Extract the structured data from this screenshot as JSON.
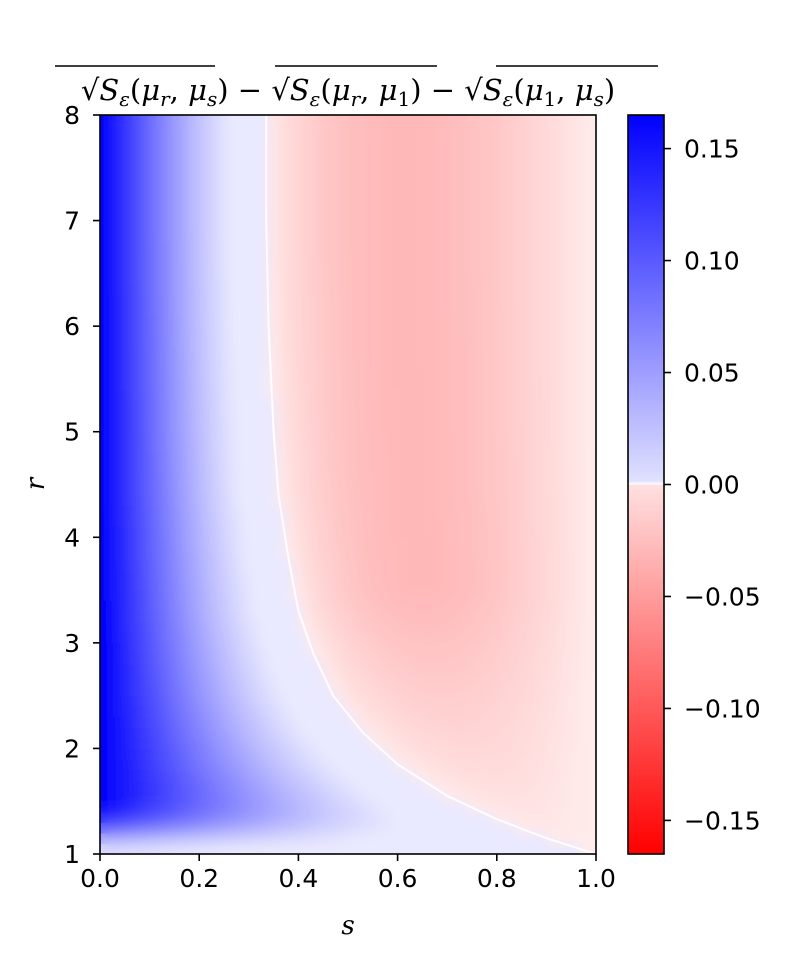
{
  "chart_data": {
    "type": "heatmap",
    "title": {
      "term1": {
        "func": "S",
        "eps": "ε",
        "args": [
          "μ",
          "r",
          "μ",
          "s"
        ]
      },
      "minus1": "−",
      "term2": {
        "func": "S",
        "eps": "ε",
        "args": [
          "μ",
          "r",
          "μ",
          "1"
        ]
      },
      "minus2": "−",
      "term3": {
        "func": "S",
        "eps": "ε",
        "args": [
          "μ",
          "1",
          "μ",
          "s"
        ]
      }
    },
    "xlabel": "s",
    "ylabel": "r",
    "xlim": [
      0.0,
      1.0
    ],
    "ylim": [
      1,
      8
    ],
    "x_ticks": [
      0.0,
      0.2,
      0.4,
      0.6,
      0.8,
      1.0
    ],
    "x_tick_labels": [
      "0.0",
      "0.2",
      "0.4",
      "0.6",
      "0.8",
      "1.0"
    ],
    "y_ticks": [
      1,
      2,
      3,
      4,
      5,
      6,
      7,
      8
    ],
    "y_tick_labels": [
      "1",
      "2",
      "3",
      "4",
      "5",
      "6",
      "7",
      "8"
    ],
    "colormap": "bwr_r",
    "colorbar": {
      "vmin": -0.165,
      "vmax": 0.165,
      "ticks": [
        0.15,
        0.1,
        0.05,
        0.0,
        -0.05,
        -0.1,
        -0.15
      ],
      "tick_labels": [
        "0.15",
        "0.10",
        "0.05",
        "0.00",
        "−0.05",
        "−0.10",
        "−0.15"
      ],
      "color_max": "#0000ff",
      "color_mid": "#ffffff",
      "color_min": "#ff0000"
    },
    "zero_contour": {
      "s": [
        0.335,
        0.335,
        0.34,
        0.35,
        0.36,
        0.38,
        0.4,
        0.43,
        0.47,
        0.53,
        0.6,
        0.7,
        0.8,
        0.9,
        1.0
      ],
      "r": [
        8.0,
        7.0,
        6.0,
        5.0,
        4.4,
        3.8,
        3.3,
        2.9,
        2.5,
        2.15,
        1.85,
        1.55,
        1.33,
        1.15,
        1.0
      ]
    },
    "grid": false
  }
}
